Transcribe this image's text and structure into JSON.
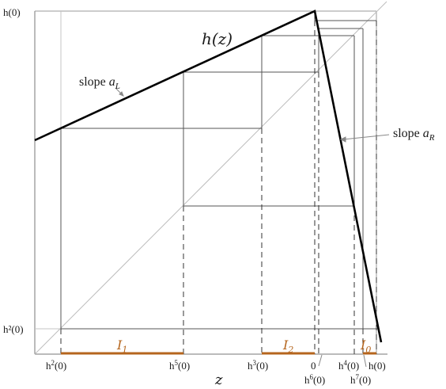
{
  "labels": {
    "h_of_z": "h(z)",
    "slope_left_word": "slope",
    "slope_left_var": "a",
    "slope_left_sub": "L",
    "slope_right_word": "slope",
    "slope_right_var": "a",
    "slope_right_sub": "R",
    "z_axis": "z",
    "y_top": "h(0)",
    "y_bottom": "h²(0)"
  },
  "x_ticks": [
    {
      "base": "h",
      "sup": "2",
      "arg": "(0)"
    },
    {
      "base": "h",
      "sup": "5",
      "arg": "(0)"
    },
    {
      "base": "h",
      "sup": "3",
      "arg": "(0)"
    },
    {
      "base": "0",
      "sup": "",
      "arg": ""
    },
    {
      "base": "h",
      "sup": "4",
      "arg": "(0)"
    },
    {
      "base": "h",
      "sup": "",
      "arg": "(0)"
    }
  ],
  "x_ticks_lower": [
    {
      "base": "h",
      "sup": "6",
      "arg": "(0)"
    },
    {
      "base": "h",
      "sup": "7",
      "arg": "(0)"
    }
  ],
  "intervals": [
    {
      "name": "I",
      "sub": "1"
    },
    {
      "name": "I",
      "sub": "2"
    },
    {
      "name": "I",
      "sub": "0"
    }
  ],
  "colors": {
    "interval": "#b5651d",
    "function": "#000000",
    "cobweb": "#555555",
    "diagonal": "#bdbdbd"
  }
}
